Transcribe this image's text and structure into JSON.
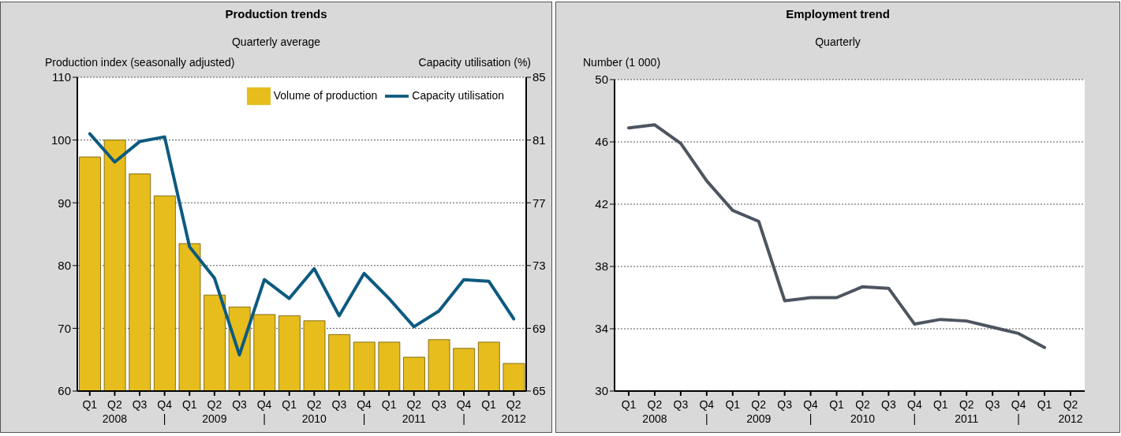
{
  "chart_data": [
    {
      "type": "bar",
      "title": "Production trends",
      "subtitle": "Quarterly average",
      "ylabel": "Production index (seasonally adjusted)",
      "y2label": "Capacity utilisation (%)",
      "categories": [
        "Q1",
        "Q2\n2008",
        "Q3",
        "Q4\n|",
        "Q1",
        "Q2\n2009",
        "Q3",
        "Q4\n|",
        "Q1",
        "Q2\n2010",
        "Q3",
        "Q4\n|",
        "Q1",
        "Q2\n2011",
        "Q3",
        "Q4\n|",
        "Q1",
        "Q2\n2012"
      ],
      "series": [
        {
          "name": "Volume of production",
          "type": "bar",
          "color": "#e6bd1c",
          "values": [
            97.3,
            100,
            94.6,
            91.1,
            83.5,
            75.3,
            73.4,
            72.2,
            72.0,
            71.2,
            69.0,
            67.8,
            67.8,
            65.4,
            68.2,
            66.8,
            67.8,
            64.4
          ]
        },
        {
          "name": "Capacity utilisation",
          "type": "line",
          "axis": "y2",
          "color": "#0d5a80",
          "values": [
            81.4,
            79.6,
            80.9,
            81.2,
            74.2,
            72.2,
            67.3,
            72.1,
            70.9,
            72.8,
            69.8,
            72.5,
            70.9,
            69.1,
            70.1,
            72.1,
            72.0,
            69.6
          ]
        }
      ],
      "ylim": [
        60,
        110
      ],
      "yticks": [
        60,
        70,
        80,
        90,
        100,
        110
      ],
      "y2lim": [
        65,
        85
      ],
      "y2ticks": [
        65,
        69,
        73,
        77,
        81,
        85
      ],
      "grid": "y",
      "legend": "top right"
    },
    {
      "type": "line",
      "title": "Employment trend",
      "subtitle": "Quarterly",
      "ylabel": "Number (1 000)",
      "categories": [
        "Q1",
        "Q2\n2008",
        "Q3",
        "Q4\n|",
        "Q1",
        "Q2\n2009",
        "Q3",
        "Q4\n|",
        "Q1",
        "Q2\n2010",
        "Q3",
        "Q4\n|",
        "Q1",
        "Q2\n2011",
        "Q3",
        "Q4\n|",
        "Q1",
        "Q2\n2012"
      ],
      "values": [
        46.9,
        47.1,
        45.9,
        43.5,
        41.6,
        40.9,
        35.8,
        36.0,
        36.0,
        36.7,
        36.6,
        34.3,
        34.6,
        34.5,
        34.1,
        33.7,
        32.8,
        null
      ],
      "color": "#4d5560",
      "ylim": [
        30,
        50
      ],
      "yticks": [
        30,
        34,
        38,
        42,
        46,
        50
      ],
      "grid": "y"
    }
  ]
}
